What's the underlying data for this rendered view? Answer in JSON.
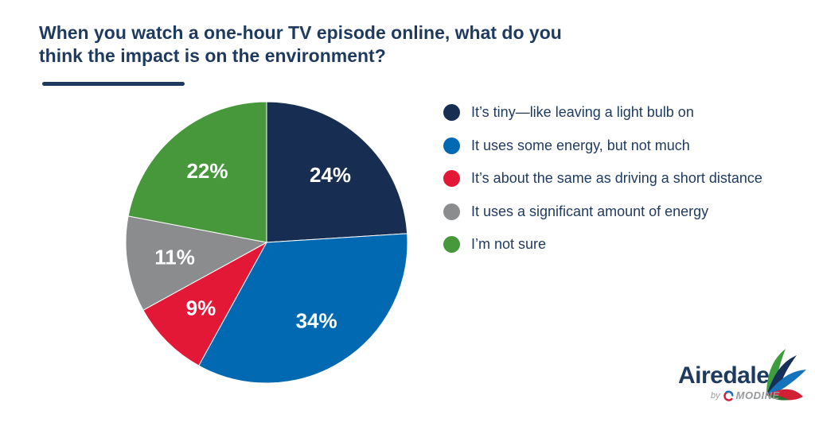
{
  "title": {
    "line1": "When you watch a one-hour TV episode online, what do you",
    "line2": "think the impact is on the environment?"
  },
  "chart_data": {
    "type": "pie",
    "title": "When you watch a one-hour TV episode online, what do you think the impact is on the environment?",
    "labels": [
      "It’s tiny—like leaving a light bulb on",
      "It uses some energy, but not much",
      "It’s about the same as driving a short distance",
      "It uses a significant amount of energy",
      "I’m not sure"
    ],
    "values": [
      24,
      34,
      9,
      11,
      22
    ],
    "unit": "%",
    "colors": [
      "#172E52",
      "#0069B1",
      "#E31837",
      "#8A8C8E",
      "#46983B"
    ],
    "start_angle_deg": -90,
    "direction": "clockwise",
    "legend_position": "right",
    "data_label_color": "#FFFFFF",
    "data_label_radius_fraction": 0.66
  },
  "legend": {
    "items": [
      {
        "label": "It’s tiny—like leaving a light bulb on"
      },
      {
        "label": "It uses some energy, but not much"
      },
      {
        "label": "It’s about the same as driving a short distance"
      },
      {
        "label": "It uses a significant amount of energy"
      },
      {
        "label": "I’m not sure"
      }
    ]
  },
  "logo": {
    "brand": "Airedale",
    "byline_prefix": "by",
    "byline_brand": "MODINE",
    "brand_color": "#1F3A5F",
    "accent_colors": {
      "green": "#3D9C3C",
      "navy": "#16305A",
      "blue": "#1573BC",
      "red": "#D21F34",
      "dark_green": "#2E7030"
    }
  },
  "theme": {
    "background": "#FFFFFF",
    "title_color": "#1F3A5F",
    "legend_text_color": "#1F3A5F"
  }
}
